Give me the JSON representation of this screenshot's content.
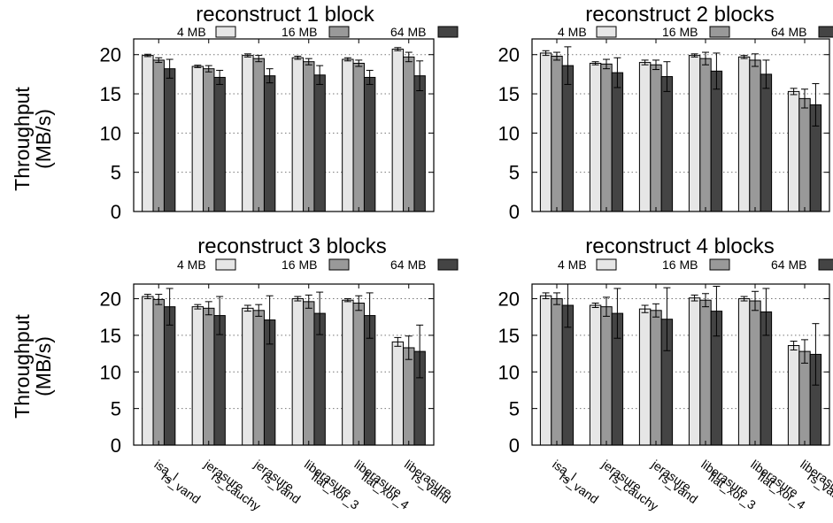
{
  "ylabel_line1": "Throughput",
  "ylabel_line2": "(MB/s)",
  "legend": [
    {
      "name": "4 MB",
      "color": "#e6e6e6"
    },
    {
      "name": "16 MB",
      "color": "#999999"
    },
    {
      "name": "64 MB",
      "color": "#444444"
    }
  ],
  "chart_data": [
    {
      "type": "bar",
      "title": "reconstruct 1 block",
      "ylim": [
        0,
        22
      ],
      "yticks": [
        0,
        5,
        10,
        15,
        20
      ],
      "grid": true,
      "legend_position": "top",
      "categories": [
        [
          "isa_l",
          "rs_vand"
        ],
        [
          "jerasure",
          "rs_cauchy"
        ],
        [
          "jerasure",
          "rs_vand"
        ],
        [
          "liberasure",
          "flat_xor_3"
        ],
        [
          "liberasure",
          "flat_xor_4"
        ],
        [
          "liberasure",
          "rs_vand"
        ]
      ],
      "series": [
        {
          "name": "4 MB",
          "values": [
            19.9,
            18.5,
            19.9,
            19.6,
            19.4,
            20.7
          ],
          "err": [
            0.15,
            0.15,
            0.2,
            0.2,
            0.2,
            0.2
          ]
        },
        {
          "name": "16 MB",
          "values": [
            19.3,
            18.2,
            19.5,
            19.1,
            18.9,
            19.7
          ],
          "err": [
            0.3,
            0.4,
            0.4,
            0.4,
            0.4,
            0.6
          ]
        },
        {
          "name": "64 MB",
          "values": [
            18.2,
            17.1,
            17.3,
            17.4,
            17.1,
            17.3
          ],
          "err": [
            1.2,
            0.9,
            0.9,
            1.2,
            0.9,
            1.9
          ]
        }
      ]
    },
    {
      "type": "bar",
      "title": "reconstruct 2 blocks",
      "ylim": [
        0,
        22
      ],
      "yticks": [
        0,
        5,
        10,
        15,
        20
      ],
      "grid": true,
      "legend_position": "top",
      "categories": [
        [
          "isa_l",
          "rs_vand"
        ],
        [
          "jerasure",
          "rs_cauchy"
        ],
        [
          "jerasure",
          "rs_vand"
        ],
        [
          "liberasure",
          "flat_xor_3"
        ],
        [
          "liberasure",
          "flat_xor_4"
        ],
        [
          "liberasure",
          "rs_vand"
        ]
      ],
      "series": [
        {
          "name": "4 MB",
          "values": [
            20.2,
            18.9,
            19.0,
            19.9,
            19.7,
            15.3
          ],
          "err": [
            0.3,
            0.2,
            0.3,
            0.2,
            0.2,
            0.4
          ]
        },
        {
          "name": "16 MB",
          "values": [
            19.8,
            18.8,
            18.7,
            19.5,
            19.3,
            14.4
          ],
          "err": [
            0.5,
            0.6,
            0.6,
            0.8,
            0.8,
            1.2
          ]
        },
        {
          "name": "64 MB",
          "values": [
            18.6,
            17.7,
            17.2,
            17.9,
            17.5,
            13.6
          ],
          "err": [
            2.4,
            1.9,
            1.9,
            2.3,
            1.8,
            2.7
          ]
        }
      ]
    },
    {
      "type": "bar",
      "title": "reconstruct 3 blocks",
      "ylim": [
        0,
        22
      ],
      "yticks": [
        0,
        5,
        10,
        15,
        20
      ],
      "grid": true,
      "legend_position": "top",
      "categories": [
        [
          "isa_l",
          "rs_vand"
        ],
        [
          "jerasure",
          "rs_cauchy"
        ],
        [
          "jerasure",
          "rs_vand"
        ],
        [
          "liberasure",
          "flat_xor_3"
        ],
        [
          "liberasure",
          "flat_xor_4"
        ],
        [
          "liberasure",
          "rs_vand"
        ]
      ],
      "series": [
        {
          "name": "4 MB",
          "values": [
            20.3,
            18.9,
            18.7,
            20.0,
            19.8,
            14.1
          ],
          "err": [
            0.3,
            0.3,
            0.4,
            0.3,
            0.2,
            0.6
          ]
        },
        {
          "name": "16 MB",
          "values": [
            19.9,
            18.7,
            18.4,
            19.6,
            19.4,
            13.3
          ],
          "err": [
            0.7,
            0.9,
            0.8,
            0.9,
            1.0,
            1.6
          ]
        },
        {
          "name": "64 MB",
          "values": [
            18.9,
            17.7,
            17.1,
            18.0,
            17.7,
            12.8
          ],
          "err": [
            2.5,
            2.6,
            3.3,
            2.9,
            3.1,
            3.6
          ]
        }
      ]
    },
    {
      "type": "bar",
      "title": "reconstruct 4 blocks",
      "ylim": [
        0,
        22
      ],
      "yticks": [
        0,
        5,
        10,
        15,
        20
      ],
      "grid": true,
      "legend_position": "top",
      "categories": [
        [
          "isa_l",
          "rs_vand"
        ],
        [
          "jerasure",
          "rs_cauchy"
        ],
        [
          "jerasure",
          "rs_vand"
        ],
        [
          "liberasure",
          "flat_xor_3"
        ],
        [
          "liberasure",
          "flat_xor_4"
        ],
        [
          "liberasure",
          "rs_vand"
        ]
      ],
      "series": [
        {
          "name": "4 MB",
          "values": [
            20.4,
            19.1,
            18.6,
            20.1,
            20.0,
            13.6
          ],
          "err": [
            0.4,
            0.3,
            0.5,
            0.4,
            0.3,
            0.6
          ]
        },
        {
          "name": "16 MB",
          "values": [
            20.0,
            18.9,
            18.4,
            19.8,
            19.7,
            12.8
          ],
          "err": [
            0.8,
            1.3,
            0.9,
            0.9,
            1.3,
            1.6
          ]
        },
        {
          "name": "64 MB",
          "values": [
            19.1,
            18.0,
            17.2,
            18.3,
            18.2,
            12.4
          ],
          "err": [
            3.0,
            3.4,
            4.3,
            3.4,
            3.2,
            4.2
          ]
        }
      ]
    }
  ]
}
